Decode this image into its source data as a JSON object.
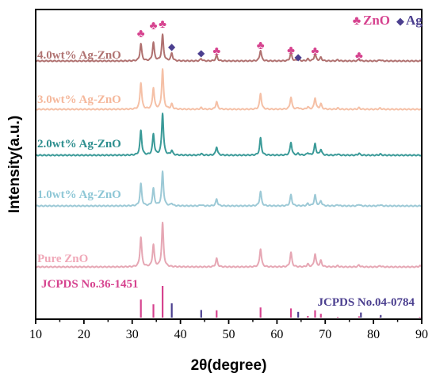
{
  "chart_data": {
    "type": "line",
    "title": "",
    "xlabel": "2θ(degree)",
    "ylabel": "Intensity(a.u.)",
    "xlim": [
      10,
      90
    ],
    "xticks": [
      10,
      20,
      30,
      40,
      50,
      60,
      70,
      80,
      90
    ],
    "y_ticks_shown": false,
    "grid": false,
    "legend": {
      "placement": "top-right",
      "entries": [
        {
          "symbol": "♣",
          "label": "ZnO",
          "color": "#d6438f"
        },
        {
          "symbol": "◆",
          "label": "Ag",
          "color": "#4b3f8f"
        }
      ]
    },
    "peak_marker_colors": {
      "ZnO": "#d6438f",
      "Ag": "#4b3f8f"
    },
    "series": [
      {
        "name": "Pure ZnO",
        "color": "#e6a7b4",
        "baseline": 0,
        "label_color": "#f0a8b8",
        "peaks": [
          [
            31.8,
            7.8
          ],
          [
            34.4,
            5.8
          ],
          [
            36.3,
            11.5
          ],
          [
            47.5,
            2.2
          ],
          [
            56.6,
            4.8
          ],
          [
            62.9,
            3.8
          ],
          [
            66.4,
            0.7
          ],
          [
            67.9,
            3.4
          ],
          [
            69.1,
            1.6
          ],
          [
            72.6,
            0.3
          ],
          [
            77.0,
            0.5
          ],
          [
            81.4,
            0.3
          ],
          [
            89.6,
            0.3
          ]
        ]
      },
      {
        "name": "1.0wt% Ag-ZnO",
        "color": "#9cc9d6",
        "baseline": 1,
        "label_color": "#8ec7d6",
        "peaks": [
          [
            31.8,
            5.8
          ],
          [
            34.4,
            4.5
          ],
          [
            36.3,
            9.0
          ],
          [
            38.2,
            0.6
          ],
          [
            44.3,
            0.3
          ],
          [
            47.5,
            1.8
          ],
          [
            56.6,
            3.8
          ],
          [
            62.9,
            2.9
          ],
          [
            66.4,
            0.6
          ],
          [
            67.9,
            2.8
          ],
          [
            69.1,
            1.3
          ],
          [
            72.6,
            0.3
          ],
          [
            77.0,
            0.4
          ],
          [
            81.4,
            0.3
          ]
        ]
      },
      {
        "name": "2.0wt% Ag-ZnO",
        "color": "#3a9a98",
        "baseline": 2,
        "label_color": "#2e8f8f",
        "peaks": [
          [
            31.8,
            6.5
          ],
          [
            34.4,
            5.5
          ],
          [
            36.3,
            11.0
          ],
          [
            38.2,
            1.2
          ],
          [
            44.3,
            0.4
          ],
          [
            47.5,
            2.2
          ],
          [
            56.6,
            4.5
          ],
          [
            62.9,
            3.4
          ],
          [
            64.4,
            0.4
          ],
          [
            66.4,
            0.6
          ],
          [
            67.9,
            3.0
          ],
          [
            69.1,
            1.5
          ],
          [
            72.6,
            0.3
          ],
          [
            77.0,
            0.5
          ],
          [
            81.4,
            0.3
          ]
        ]
      },
      {
        "name": "3.0wt% Ag-ZnO",
        "color": "#f5c0a6",
        "baseline": 3,
        "label_color": "#f5b89c",
        "peaks": [
          [
            31.8,
            7.0
          ],
          [
            34.4,
            5.6
          ],
          [
            36.3,
            10.5
          ],
          [
            38.2,
            1.3
          ],
          [
            44.3,
            0.4
          ],
          [
            47.5,
            2.0
          ],
          [
            56.6,
            4.2
          ],
          [
            62.9,
            3.2
          ],
          [
            64.4,
            0.4
          ],
          [
            66.4,
            0.6
          ],
          [
            67.9,
            3.0
          ],
          [
            69.1,
            1.4
          ],
          [
            72.6,
            0.3
          ],
          [
            77.0,
            0.4
          ],
          [
            81.4,
            0.3
          ]
        ]
      },
      {
        "name": "4.0wt% Ag-ZnO",
        "color": "#b07170",
        "baseline": 4,
        "label_color": "#b07372",
        "peaks": [
          [
            31.8,
            4.5
          ],
          [
            34.4,
            4.8
          ],
          [
            36.3,
            6.8
          ],
          [
            38.2,
            2.0
          ],
          [
            44.3,
            0.6
          ],
          [
            47.5,
            1.5
          ],
          [
            56.6,
            2.8
          ],
          [
            62.9,
            2.2
          ],
          [
            64.4,
            0.6
          ],
          [
            66.4,
            0.5
          ],
          [
            67.9,
            1.9
          ],
          [
            69.1,
            0.9
          ],
          [
            72.6,
            0.3
          ],
          [
            77.0,
            0.4
          ],
          [
            81.4,
            0.3
          ]
        ]
      }
    ],
    "peak_markers": [
      {
        "x": 31.8,
        "phase": "ZnO"
      },
      {
        "x": 34.4,
        "phase": "ZnO"
      },
      {
        "x": 36.3,
        "phase": "ZnO"
      },
      {
        "x": 38.2,
        "phase": "Ag"
      },
      {
        "x": 44.3,
        "phase": "Ag"
      },
      {
        "x": 47.5,
        "phase": "ZnO"
      },
      {
        "x": 56.6,
        "phase": "ZnO"
      },
      {
        "x": 62.9,
        "phase": "ZnO"
      },
      {
        "x": 64.4,
        "phase": "Ag"
      },
      {
        "x": 67.9,
        "phase": "ZnO"
      },
      {
        "x": 77.0,
        "phase": "ZnO"
      }
    ],
    "reference_patterns": [
      {
        "label": "JCPDS No.36-1451",
        "phase": "ZnO",
        "color": "#d6438f",
        "lines": [
          [
            31.8,
            0.57
          ],
          [
            34.4,
            0.42
          ],
          [
            36.3,
            1.0
          ],
          [
            47.5,
            0.23
          ],
          [
            56.6,
            0.32
          ],
          [
            62.9,
            0.29
          ],
          [
            66.4,
            0.05
          ],
          [
            67.9,
            0.23
          ],
          [
            69.1,
            0.12
          ],
          [
            72.6,
            0.02
          ],
          [
            77.0,
            0.04
          ],
          [
            81.4,
            0.02
          ],
          [
            89.6,
            0.02
          ]
        ]
      },
      {
        "label": "JCPDS No.04-0784",
        "phase": "Ag",
        "color": "#4b3f8f",
        "lines": [
          [
            38.2,
            0.45
          ],
          [
            44.3,
            0.24
          ],
          [
            64.4,
            0.18
          ],
          [
            77.4,
            0.16
          ],
          [
            81.5,
            0.08
          ]
        ]
      }
    ]
  }
}
